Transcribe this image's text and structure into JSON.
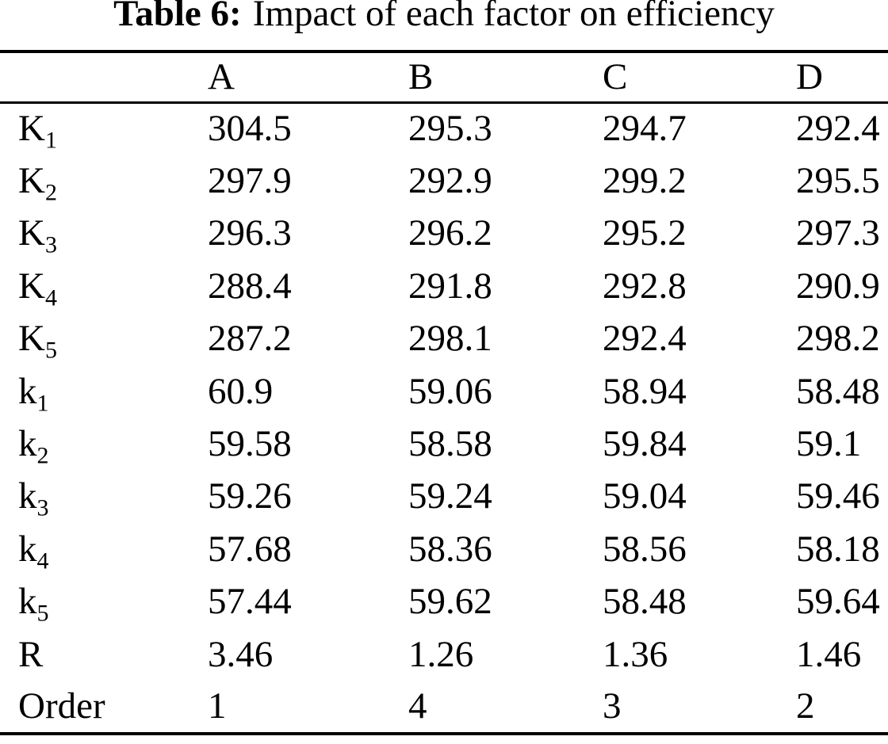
{
  "caption": {
    "label": "Table 6:",
    "text": "Impact of each factor on efficiency"
  },
  "table": {
    "headers": [
      "A",
      "B",
      "C",
      "D"
    ],
    "rows": [
      {
        "label": "K",
        "sub": "1",
        "values": [
          "304.5",
          "295.3",
          "294.7",
          "292.4"
        ]
      },
      {
        "label": "K",
        "sub": "2",
        "values": [
          "297.9",
          "292.9",
          "299.2",
          "295.5"
        ]
      },
      {
        "label": "K",
        "sub": "3",
        "values": [
          "296.3",
          "296.2",
          "295.2",
          "297.3"
        ]
      },
      {
        "label": "K",
        "sub": "4",
        "values": [
          "288.4",
          "291.8",
          "292.8",
          "290.9"
        ]
      },
      {
        "label": "K",
        "sub": "5",
        "values": [
          "287.2",
          "298.1",
          "292.4",
          "298.2"
        ]
      },
      {
        "label": "k",
        "sub": "1",
        "values": [
          "60.9",
          "59.06",
          "58.94",
          "58.48"
        ]
      },
      {
        "label": "k",
        "sub": "2",
        "values": [
          "59.58",
          "58.58",
          "59.84",
          "59.1"
        ]
      },
      {
        "label": "k",
        "sub": "3",
        "values": [
          "59.26",
          "59.24",
          "59.04",
          "59.46"
        ]
      },
      {
        "label": "k",
        "sub": "4",
        "values": [
          "57.68",
          "58.36",
          "58.56",
          "58.18"
        ]
      },
      {
        "label": "k",
        "sub": "5",
        "values": [
          "57.44",
          "59.62",
          "58.48",
          "59.64"
        ]
      },
      {
        "label": "R",
        "sub": "",
        "values": [
          "3.46",
          "1.26",
          "1.36",
          "1.46"
        ]
      },
      {
        "label": "Order",
        "sub": "",
        "values": [
          "1",
          "4",
          "3",
          "2"
        ]
      }
    ]
  },
  "colors": {
    "text": "#000000",
    "background": "#ffffff",
    "rule": "#000000"
  }
}
